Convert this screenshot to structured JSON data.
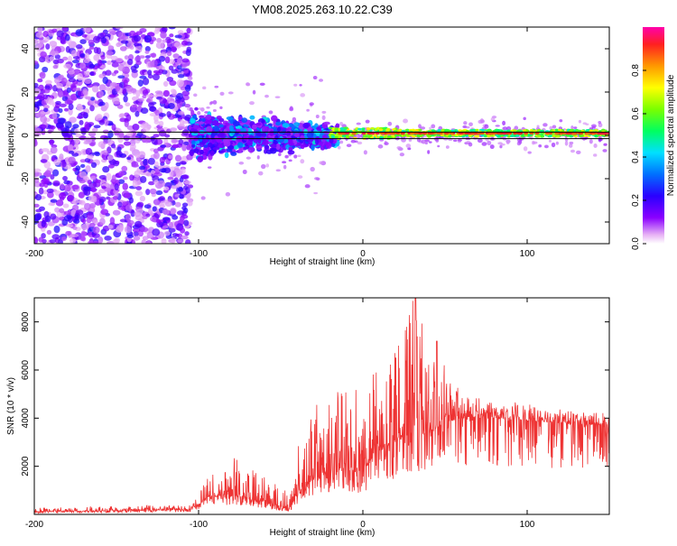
{
  "title": "YM08.2025.263.10.22.C39",
  "chart_data": [
    {
      "type": "heatmap",
      "title": "YM08.2025.263.10.22.C39",
      "xlabel": "Height of straight line (km)",
      "ylabel": "Frequency (Hz)",
      "xlim": [
        -200,
        150
      ],
      "ylim": [
        -50,
        50
      ],
      "x_ticks": [
        -200,
        -100,
        0,
        100
      ],
      "x_tick_labels": [
        "-200",
        "-100",
        "0",
        "100"
      ],
      "y_ticks": [
        -40,
        -20,
        0,
        20,
        40
      ],
      "y_tick_labels": [
        "-40",
        "-20",
        "0",
        "20",
        "40"
      ],
      "grid": false,
      "colorbar": {
        "label": "Normalized spectral amplitude",
        "range": [
          0,
          1
        ],
        "ticks": [
          0.0,
          0.2,
          0.4,
          0.6,
          0.8
        ],
        "tick_labels": [
          "0.0",
          "0.2",
          "0.4",
          "0.6",
          "0.8"
        ],
        "colormap": "rainbow"
      },
      "regions": [
        {
          "x_range": [
            -200,
            -105
          ],
          "freq_range": [
            -50,
            50
          ],
          "amplitude": "0.05-0.35 scattered noise"
        },
        {
          "x_range": [
            -105,
            -20
          ],
          "freq_range": [
            -15,
            15
          ],
          "amplitude": "0.1-0.5 broad band"
        },
        {
          "x_range": [
            -20,
            150
          ],
          "freq_range": [
            -2,
            2
          ],
          "amplitude": "0.6-0.95 narrow line near 0-2 Hz"
        }
      ],
      "reference_lines_hz": [
        1.5,
        -1.5
      ]
    },
    {
      "type": "line",
      "xlabel": "Height of straight line (km)",
      "ylabel": "SNR (10 * v/v)",
      "xlim": [
        -200,
        150
      ],
      "ylim": [
        0,
        9000
      ],
      "x_ticks": [
        -200,
        -100,
        0,
        100
      ],
      "x_tick_labels": [
        "-200",
        "-100",
        "0",
        "100"
      ],
      "y_ticks": [
        2000,
        4000,
        6000,
        8000
      ],
      "y_tick_labels": [
        "2000",
        "4000",
        "6000",
        "8000"
      ],
      "grid": false,
      "series": [
        {
          "name": "SNR",
          "color": "#ee3333",
          "envelope": {
            "x": [
              -200,
              -150,
              -105,
              -100,
              -95,
              -80,
              -60,
              -45,
              -40,
              -30,
              -20,
              -10,
              0,
              10,
              20,
              30,
              40,
              50,
              60,
              80,
              100,
              120,
              150
            ],
            "base": [
              100,
              150,
              200,
              400,
              700,
              800,
              500,
              200,
              800,
              1500,
              1800,
              1800,
              1800,
              2600,
              3000,
              3400,
              3300,
              3800,
              4000,
              4000,
              3900,
              3800,
              3700
            ],
            "peak": [
              300,
              350,
              400,
              800,
              1500,
              2500,
              1700,
              1000,
              2800,
              4500,
              5000,
              5300,
              5500,
              6500,
              7500,
              9000,
              7300,
              6200,
              5000,
              4800,
              4600,
              4400,
              4200
            ]
          },
          "notable_peaks": [
            {
              "x": 32,
              "y": 9000
            },
            {
              "x": 20,
              "y": 6500
            },
            {
              "x": 45,
              "y": 7200
            }
          ]
        }
      ]
    }
  ]
}
